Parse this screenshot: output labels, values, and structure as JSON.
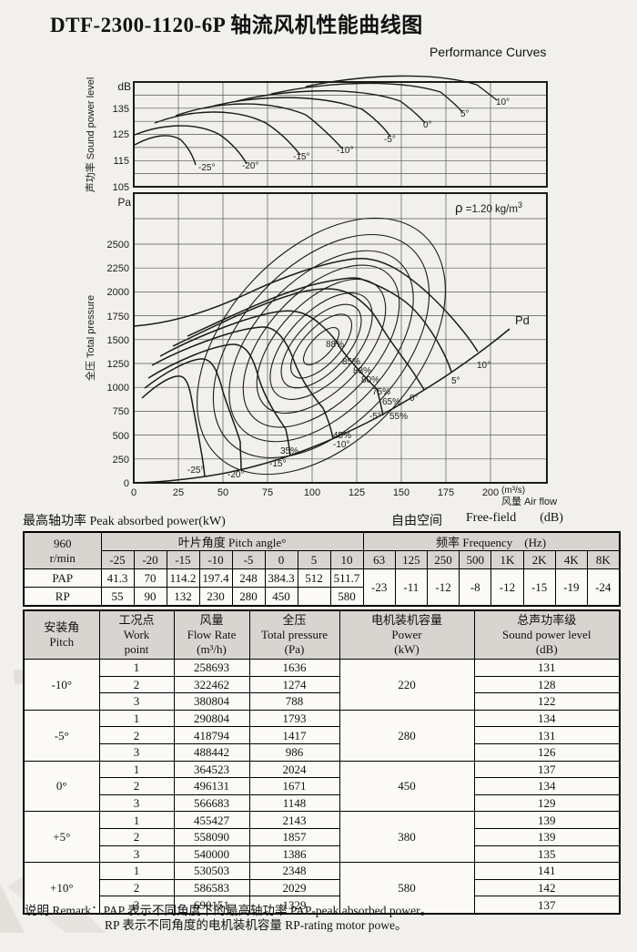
{
  "title": "DTF-2300-1120-6P 轴流风机性能曲线图",
  "subtitle": "Performance Curves",
  "top_chart": {
    "unit": "dB",
    "y_axis_label": "声功率 Sound power level",
    "y_ticks": [
      "135",
      "125",
      "115",
      "105"
    ],
    "curve_labels": [
      "-25°",
      "-20°",
      "-15°",
      "-10°",
      "-5°",
      "0°",
      "5°",
      "10°"
    ]
  },
  "main_chart": {
    "unit": "Pa",
    "y_axis_label": "全压 Total pressure",
    "y_ticks": [
      "2500",
      "2250",
      "2000",
      "1750",
      "1500",
      "1250",
      "1000",
      "750",
      "500",
      "250",
      "0"
    ],
    "x_ticks": [
      "0",
      "25",
      "50",
      "75",
      "100",
      "125",
      "150",
      "175",
      "200"
    ],
    "x_unit": "(m³/s)",
    "x_axis_label": "风量 Air flow",
    "rho_symbol": "ρ",
    "rho_value": " =1.20 kg/m",
    "rho_sup": "3",
    "pd_label": "Pd",
    "efficiency_labels": [
      "88%",
      "85%",
      "83%",
      "80%",
      "75%",
      "65%",
      "55%",
      "45%",
      "35%"
    ],
    "pitch_labels": [
      "-25°",
      "-20°",
      "-15°",
      "-10°",
      "-5°",
      "0°",
      "5°",
      "10°"
    ]
  },
  "captions": {
    "peak_power": "最高轴功率 Peak absorbed power(kW)",
    "free_field_cn": "自由空间",
    "free_field_en": "Free-field",
    "free_field_unit": "(dB)"
  },
  "power_table": {
    "speed": [
      "960",
      "r/min"
    ],
    "pitch_header": "叶片角度 Pitch angle°",
    "freq_header": "频率 Frequency　(Hz)",
    "pitch_cols": [
      "-25",
      "-20",
      "-15",
      "-10",
      "-5",
      "0",
      "5",
      "10"
    ],
    "freq_cols": [
      "63",
      "125",
      "250",
      "500",
      "1K",
      "2K",
      "4K",
      "8K"
    ],
    "rows": [
      {
        "label": "PAP",
        "values": [
          "41.3",
          "70",
          "114.2",
          "197.4",
          "248",
          "384.3",
          "512",
          "511.7"
        ]
      },
      {
        "label": "RP",
        "values": [
          "55",
          "90",
          "132",
          "230",
          "280",
          "450",
          "",
          "580"
        ]
      }
    ],
    "freq_values": [
      "-23",
      "-11",
      "-12",
      "-8",
      "-12",
      "-15",
      "-19",
      "-24"
    ]
  },
  "perf_table": {
    "headers": [
      [
        "安装角",
        "Pitch"
      ],
      [
        "工况点",
        "Work",
        "point"
      ],
      [
        "风量",
        "Flow Rate",
        "(m³/h)"
      ],
      [
        "全压",
        "Total pressure",
        "(Pa)"
      ],
      [
        "电机装机容量",
        "Power",
        "(kW)"
      ],
      [
        "总声功率级",
        "Sound power level",
        "(dB)"
      ]
    ],
    "groups": [
      {
        "pitch": "-10°",
        "power": "220",
        "rows": [
          [
            "1",
            "258693",
            "1636",
            "131"
          ],
          [
            "2",
            "322462",
            "1274",
            "128"
          ],
          [
            "3",
            "380804",
            "788",
            "122"
          ]
        ]
      },
      {
        "pitch": "-5°",
        "power": "280",
        "rows": [
          [
            "1",
            "290804",
            "1793",
            "134"
          ],
          [
            "2",
            "418794",
            "1417",
            "131"
          ],
          [
            "3",
            "488442",
            "986",
            "126"
          ]
        ]
      },
      {
        "pitch": "0°",
        "power": "450",
        "rows": [
          [
            "1",
            "364523",
            "2024",
            "137"
          ],
          [
            "2",
            "496131",
            "1671",
            "134"
          ],
          [
            "3",
            "566683",
            "1148",
            "129"
          ]
        ]
      },
      {
        "pitch": "+5°",
        "power": "380",
        "rows": [
          [
            "1",
            "455427",
            "2143",
            "139"
          ],
          [
            "2",
            "558090",
            "1857",
            "139"
          ],
          [
            "3",
            "540000",
            "1386",
            "135"
          ]
        ]
      },
      {
        "pitch": "+10°",
        "power": "580",
        "rows": [
          [
            "1",
            "530503",
            "2348",
            "141"
          ],
          [
            "2",
            "586583",
            "2029",
            "142"
          ],
          [
            "3",
            "690151",
            "1329",
            "137"
          ]
        ]
      }
    ]
  },
  "remarks": {
    "line1": "说明 Remark：PAP 表示不同角度下的最高轴功率 PAP-peak absorbed power。",
    "line2": "RP 表示不同角度的电机装机容量 RP-rating motor powe。"
  },
  "chart_data": [
    {
      "type": "line",
      "title": "声功率 Sound power level",
      "xlabel": "风量 Air flow (m³/s)",
      "ylabel": "Sound power level (dB)",
      "xlim": [
        0,
        230
      ],
      "ylim": [
        105,
        145
      ],
      "grid": true,
      "series": [
        {
          "name": "-25°",
          "points": [
            [
              1,
              121
            ],
            [
              11,
              125
            ],
            [
              23,
              118
            ],
            [
              34,
              111
            ]
          ]
        },
        {
          "name": "-20°",
          "points": [
            [
              1,
              124
            ],
            [
              18,
              128
            ],
            [
              42,
              119
            ],
            [
              62,
              112
            ]
          ]
        },
        {
          "name": "-15°",
          "points": [
            [
              12,
              128
            ],
            [
              34,
              132
            ],
            [
              64,
              123
            ],
            [
              92,
              116
            ]
          ]
        },
        {
          "name": "-10°",
          "points": [
            [
              24,
              131
            ],
            [
              52,
              135
            ],
            [
              85,
              126
            ],
            [
              116,
              118
            ]
          ]
        },
        {
          "name": "-5°",
          "points": [
            [
              40,
              133
            ],
            [
              75,
              137
            ],
            [
              112,
              128
            ],
            [
              143,
              122
            ]
          ]
        },
        {
          "name": "0°",
          "points": [
            [
              58,
              135
            ],
            [
              95,
              139
            ],
            [
              132,
              131
            ],
            [
              163,
              127
            ]
          ]
        },
        {
          "name": "5°",
          "points": [
            [
              77,
              137
            ],
            [
              115,
              141
            ],
            [
              152,
              133
            ],
            [
              184,
              129
            ]
          ]
        },
        {
          "name": "10°",
          "points": [
            [
              96,
              139
            ],
            [
              135,
              142
            ],
            [
              172,
              135
            ],
            [
              203,
              132
            ]
          ]
        }
      ]
    },
    {
      "type": "line",
      "title": "全压 Total pressure vs 风量 Air flow (ρ=1.20 kg/m³)",
      "xlabel": "风量 Air flow (m³/s)",
      "ylabel": "全压 Total pressure (Pa)",
      "xlim": [
        0,
        230
      ],
      "ylim": [
        0,
        2750
      ],
      "grid": true,
      "efficiency_contours_pct": [
        35,
        45,
        55,
        65,
        75,
        80,
        83,
        85,
        88
      ],
      "efficiency_center": [
        105,
        1430
      ],
      "pd_curve": {
        "name": "Pd",
        "points": [
          [
            0,
            0
          ],
          [
            50,
            91
          ],
          [
            100,
            363
          ],
          [
            150,
            817
          ],
          [
            200,
            1452
          ],
          [
            210,
            1601
          ]
        ]
      },
      "series": [
        {
          "name": "-25°",
          "points": [
            [
              26,
              1120
            ],
            [
              33,
              800
            ],
            [
              40,
              330
            ],
            [
              44,
              70
            ]
          ]
        },
        {
          "name": "-20°",
          "points": [
            [
              38,
              1300
            ],
            [
              50,
              950
            ],
            [
              62,
              430
            ],
            [
              65,
              150
            ]
          ]
        },
        {
          "name": "-15°",
          "points": [
            [
              55,
              1450
            ],
            [
              70,
              1100
            ],
            [
              88,
              560
            ],
            [
              91,
              300
            ]
          ]
        },
        {
          "name": "-10°",
          "points": [
            [
              72,
              1636
            ],
            [
              90,
              1274
            ],
            [
              106,
              788
            ],
            [
              112,
              460
            ]
          ]
        },
        {
          "name": "-5°",
          "points": [
            [
              81,
              1793
            ],
            [
              116,
              1417
            ],
            [
              136,
              986
            ],
            [
              140,
              712
            ]
          ]
        },
        {
          "name": "0°",
          "points": [
            [
              101,
              2024
            ],
            [
              138,
              1671
            ],
            [
              157,
              1148
            ],
            [
              163,
              965
            ]
          ]
        },
        {
          "name": "5°",
          "points": [
            [
              126,
              2143
            ],
            [
              155,
              1857
            ],
            [
              150,
              1386
            ],
            [
              178,
              1150
            ]
          ]
        },
        {
          "name": "10°",
          "points": [
            [
              147,
              2348
            ],
            [
              163,
              2029
            ],
            [
              192,
              1329
            ],
            [
              193,
              1340
            ]
          ]
        }
      ]
    }
  ]
}
